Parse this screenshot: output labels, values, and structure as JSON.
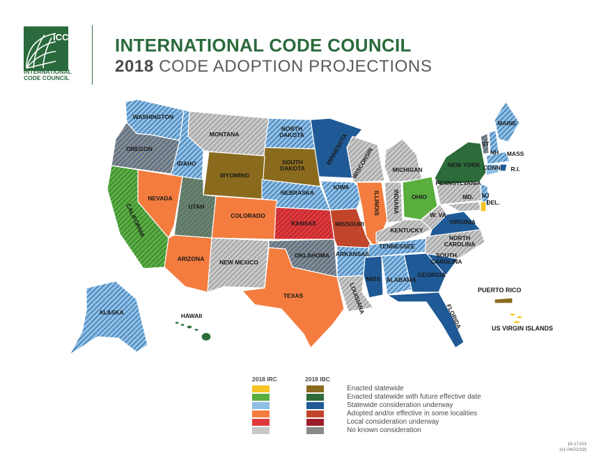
{
  "header": {
    "logo_mark": "ICC",
    "logo_org_line1": "INTERNATIONAL",
    "logo_org_line2": "CODE COUNCIL",
    "title": "INTERNATIONAL CODE COUNCIL",
    "subtitle_year": "2018",
    "subtitle_rest": "CODE ADOPTION PROJECTIONS"
  },
  "colors": {
    "irc": [
      "#f6c324",
      "#5aae3e",
      "#8ebfe6",
      "#f37c3e",
      "#e0393b",
      "#c8c8c8"
    ],
    "ibc": [
      "#8a6b1e",
      "#2c6b3a",
      "#1f5a96",
      "#c1452b",
      "#9e1c2a",
      "#8a8a8a"
    ]
  },
  "states": [
    {
      "name": "WASHINGTON",
      "label": "WASHINGTON"
    },
    {
      "name": "OREGON",
      "label": "OREGON"
    },
    {
      "name": "IDAHO",
      "label": "IDAHO"
    },
    {
      "name": "MONTANA",
      "label": "MONTANA"
    },
    {
      "name": "NORTH DAKOTA",
      "label": "NORTH DAKOTA"
    },
    {
      "name": "MINNESOTA",
      "label": "MINNESOTA"
    },
    {
      "name": "SOUTH DAKOTA",
      "label": "SOUTH DAKOTA"
    },
    {
      "name": "WYOMING",
      "label": "WYOMING"
    },
    {
      "name": "WISCONSIN",
      "label": "WISCONSIN"
    },
    {
      "name": "MICHIGAN",
      "label": "MICHIGAN"
    },
    {
      "name": "NEW YORK",
      "label": "NEW YORK"
    },
    {
      "name": "MAINE",
      "label": "MAINE"
    },
    {
      "name": "VT",
      "label": "VT"
    },
    {
      "name": "NH",
      "label": "NH"
    },
    {
      "name": "MASS",
      "label": "MASS"
    },
    {
      "name": "R.I.",
      "label": "R.I."
    },
    {
      "name": "CONN",
      "label": "CONN"
    },
    {
      "name": "NEVADA",
      "label": "NEVADA"
    },
    {
      "name": "UTAH",
      "label": "UTAH"
    },
    {
      "name": "CALIFORNIA",
      "label": "CALIFORNIA"
    },
    {
      "name": "COLORADO",
      "label": "COLORADO"
    },
    {
      "name": "NEBRASKA",
      "label": "NEBRASKA"
    },
    {
      "name": "IOWA",
      "label": "IOWA"
    },
    {
      "name": "ILLINOIS",
      "label": "ILLINOIS"
    },
    {
      "name": "INDIANA",
      "label": "INDIANA"
    },
    {
      "name": "OHIO",
      "label": "OHIO"
    },
    {
      "name": "PENNSYLVANIA",
      "label": "PENNSYLVANIA"
    },
    {
      "name": "NJ",
      "label": "NJ"
    },
    {
      "name": "MD.",
      "label": "MD."
    },
    {
      "name": "DEL.",
      "label": "DEL."
    },
    {
      "name": "KANSAS",
      "label": "KANSAS"
    },
    {
      "name": "MISSOURI",
      "label": "MISSOURI"
    },
    {
      "name": "KENTUCKY",
      "label": "KENTUCKY"
    },
    {
      "name": "W. VA",
      "label": "W. VA"
    },
    {
      "name": "VIRGINIA",
      "label": "VIRGINIA"
    },
    {
      "name": "ARIZONA",
      "label": "ARIZONA"
    },
    {
      "name": "NEW MEXICO",
      "label": "NEW MEXICO"
    },
    {
      "name": "OKLAHOMA",
      "label": "OKLAHOMA"
    },
    {
      "name": "ARKANSAS",
      "label": "ARKANSAS"
    },
    {
      "name": "TENNESSEE",
      "label": "TENNESSEE"
    },
    {
      "name": "NORTH CAROLINA",
      "label": "NORTH CAROLINA"
    },
    {
      "name": "SOUTH CAROLINA",
      "label": "SOUTH CAROLINA"
    },
    {
      "name": "TEXAS",
      "label": "TEXAS"
    },
    {
      "name": "LOUISIANA",
      "label": "LOUISIANA"
    },
    {
      "name": "MISS",
      "label": "MISS"
    },
    {
      "name": "ALABAMA",
      "label": "ALABAMA"
    },
    {
      "name": "GEORGIA",
      "label": "GEORGIA"
    },
    {
      "name": "FLORIDA",
      "label": "FLORIDA"
    },
    {
      "name": "ALASKA",
      "label": "ALASKA"
    },
    {
      "name": "HAWAII",
      "label": "HAWAII"
    }
  ],
  "territories": {
    "puerto_rico": "PUERTO RICO",
    "virgin_islands": "US VIRGIN ISLANDS"
  },
  "legend": {
    "irc_header": "2018 IRC",
    "ibc_header": "2018 IBC",
    "items": [
      "Enacted statewide",
      "Enacted statewide with future effective date",
      "Statewide consideration underway",
      "Adopted and/or effective in some localities",
      "Local consideration underway",
      "No known consideration"
    ]
  },
  "footnote": {
    "line1": "19-17153",
    "line2": "(v1-04/22/19)"
  }
}
